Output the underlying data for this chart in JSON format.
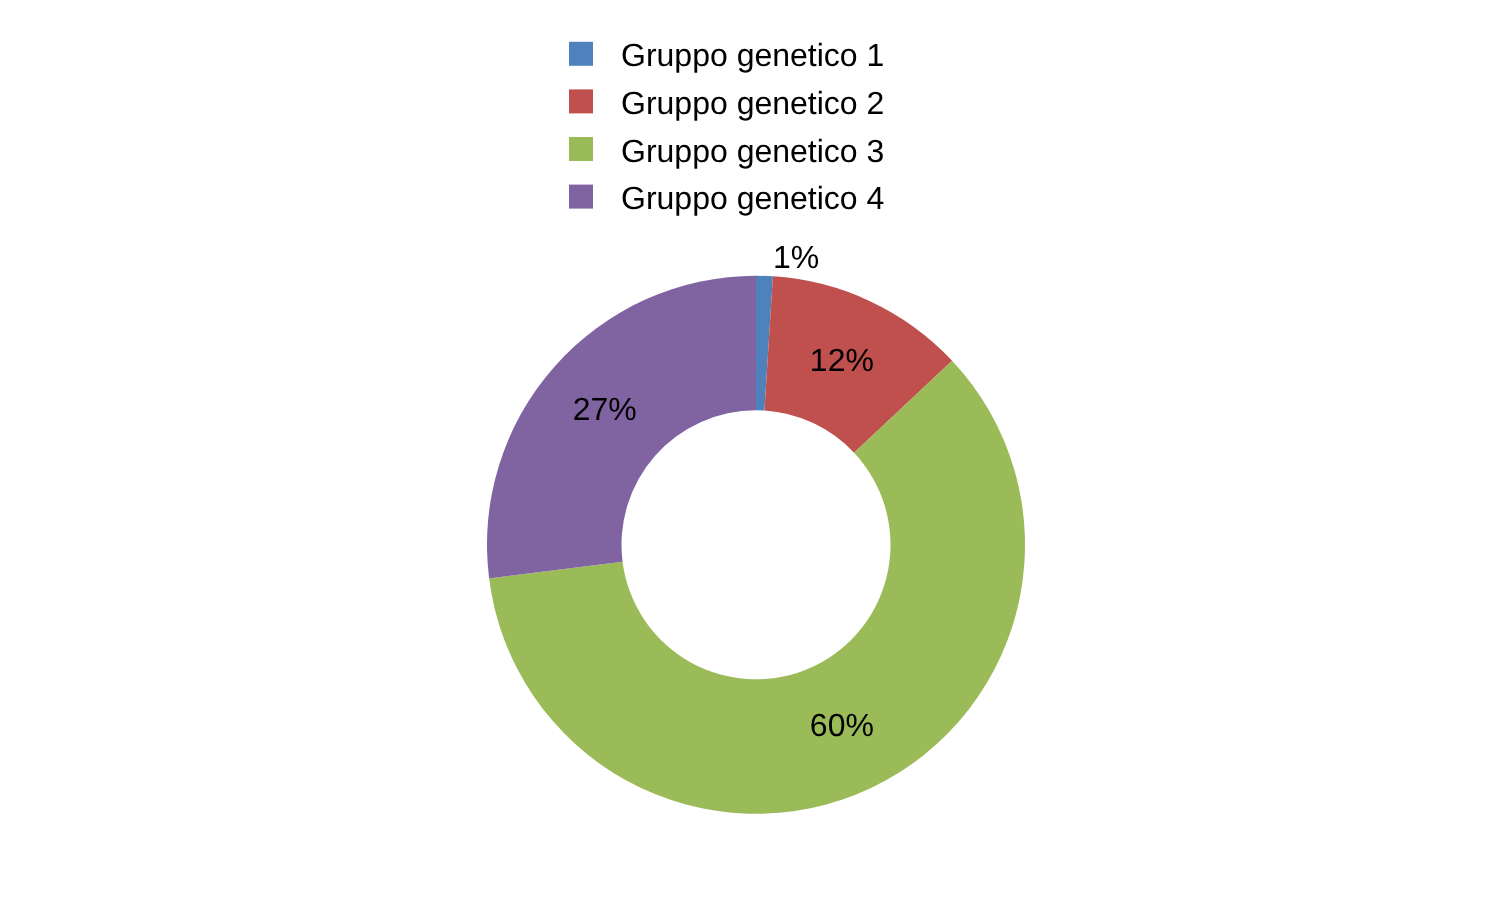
{
  "chart_data": {
    "type": "donut",
    "categories": [
      "Gruppo genetico 1",
      "Gruppo genetico 2",
      "Gruppo genetico 3",
      "Gruppo genetico 4"
    ],
    "values": [
      1,
      12,
      60,
      27
    ],
    "value_labels": [
      "1%",
      "12%",
      "60%",
      "27%"
    ],
    "colors": [
      "#4f81bd",
      "#c0504d",
      "#9bbb59",
      "#8064a2"
    ],
    "legend": "top"
  }
}
